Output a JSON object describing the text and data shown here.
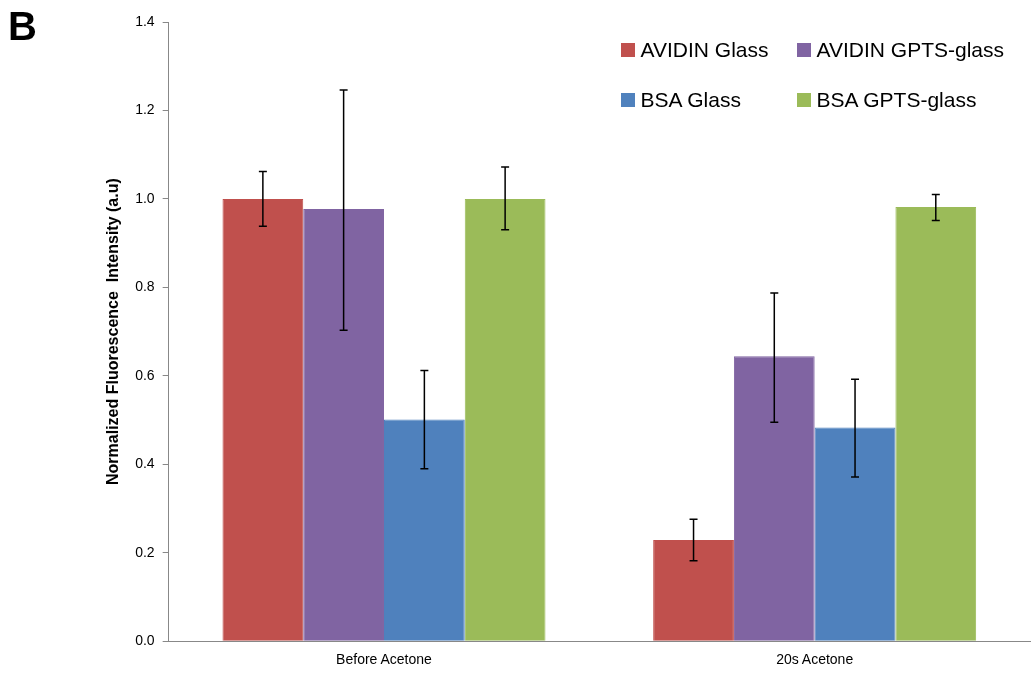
{
  "chart_data": {
    "type": "bar",
    "ylabel": "Normalized Fluorescence  Intensity (a.u)",
    "annotations": [
      "B"
    ],
    "categories": [
      "Before Acetone",
      "20s Acetone"
    ],
    "series": [
      {
        "name": "AVIDIN Glass",
        "color": "#c0504d",
        "values": [
          1.0,
          0.229
        ],
        "errors": [
          [
            0.938,
            1.062
          ],
          [
            0.182,
            0.276
          ]
        ]
      },
      {
        "name": "AVIDIN GPTS-glass",
        "color": "#8064a2",
        "values": [
          0.977,
          0.644
        ],
        "errors": [
          [
            0.703,
            1.246
          ],
          [
            0.495,
            0.787
          ]
        ]
      },
      {
        "name": "BSA Glass",
        "color": "#4f81bd",
        "values": [
          0.501,
          0.483
        ],
        "errors": [
          [
            0.39,
            0.612
          ],
          [
            0.371,
            0.592
          ]
        ]
      },
      {
        "name": "BSA GPTS-glass",
        "color": "#9bbb59",
        "values": [
          1.0,
          0.982
        ],
        "errors": [
          [
            0.93,
            1.072
          ],
          [
            0.951,
            1.01
          ]
        ]
      }
    ],
    "ylim": [
      0,
      1.4
    ],
    "yticks": [
      {
        "value": 0,
        "label": "0.0"
      },
      {
        "value": 0.2,
        "label": "0.2"
      },
      {
        "value": 0.4,
        "label": "0.4"
      },
      {
        "value": 0.6,
        "label": "0.6"
      },
      {
        "value": 0.8,
        "label": "0.8"
      },
      {
        "value": 1.0,
        "label": "1.0"
      },
      {
        "value": 1.2,
        "label": "1.2"
      },
      {
        "value": 1.4,
        "label": "1.4"
      }
    ],
    "grid": false,
    "legend": "top right"
  }
}
